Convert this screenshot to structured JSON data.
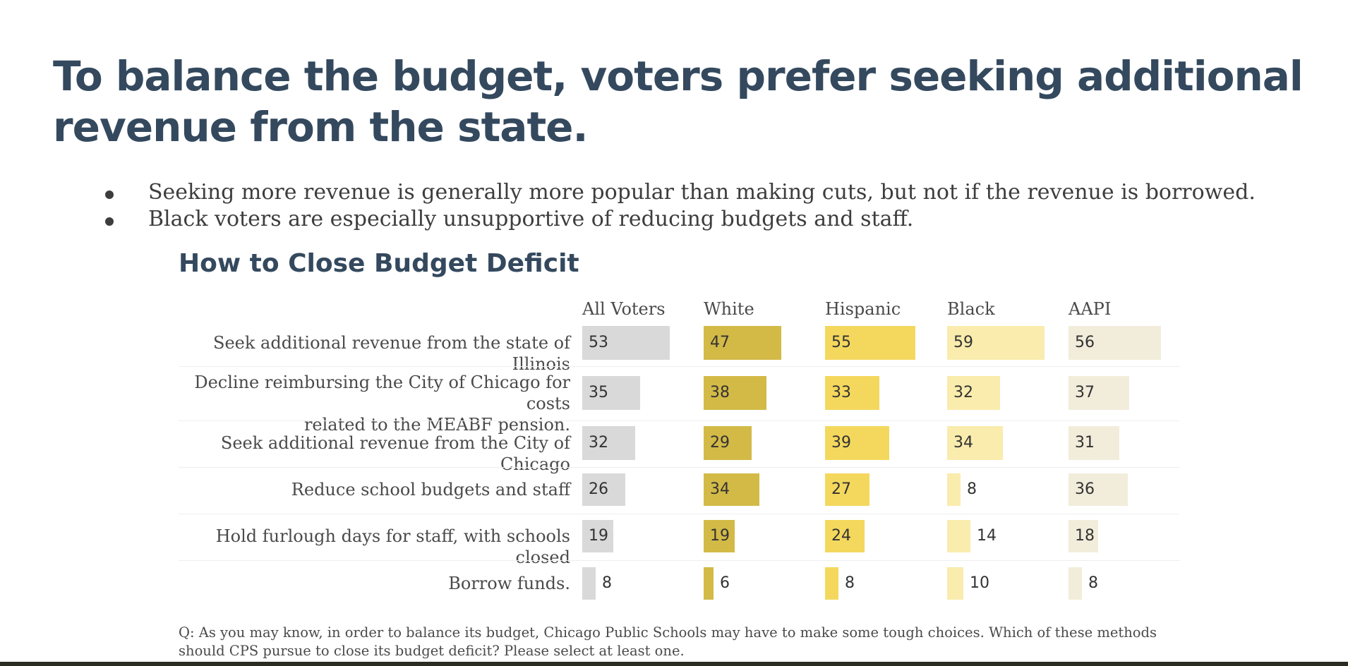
{
  "slide": {
    "title": "To balance the budget, voters prefer seeking additional revenue from the state.",
    "bullets": [
      "Seeking more revenue is generally more popular than making cuts, but not if the revenue is borrowed.",
      "Black voters are especially unsupportive of reducing budgets and staff."
    ],
    "footnote": "Q: As you may know, in order to balance its budget, Chicago Public Schools may have to make some tough choices. Which of these methods should CPS pursue to close its budget deficit? Please select at least one."
  },
  "chart_data": {
    "type": "bar",
    "orientation": "horizontal",
    "layout": "small-multiples",
    "title": "How to Close Budget Deficit",
    "categories": [
      "Seek additional revenue from the state of Illinois",
      "Decline reimbursing the City of Chicago for costs related to the MEABF pension.",
      "Seek additional revenue from the City of Chicago",
      "Reduce school budgets and staff",
      "Hold furlough days for staff, with schools closed",
      "Borrow funds."
    ],
    "series": [
      {
        "name": "All Voters",
        "color": "#d9d9d9",
        "values": [
          53,
          35,
          32,
          26,
          19,
          8
        ]
      },
      {
        "name": "White",
        "color": "#d3ba47",
        "values": [
          47,
          38,
          29,
          34,
          19,
          6
        ]
      },
      {
        "name": "Hispanic",
        "color": "#f4d85e",
        "values": [
          55,
          33,
          39,
          27,
          24,
          8
        ]
      },
      {
        "name": "Black",
        "color": "#f9ecad",
        "values": [
          59,
          32,
          34,
          8,
          14,
          10
        ]
      },
      {
        "name": "AAPI",
        "color": "#f2eddb",
        "values": [
          56,
          37,
          31,
          36,
          18,
          8
        ]
      }
    ],
    "xlim": [
      0,
      60
    ],
    "unit": "%"
  }
}
